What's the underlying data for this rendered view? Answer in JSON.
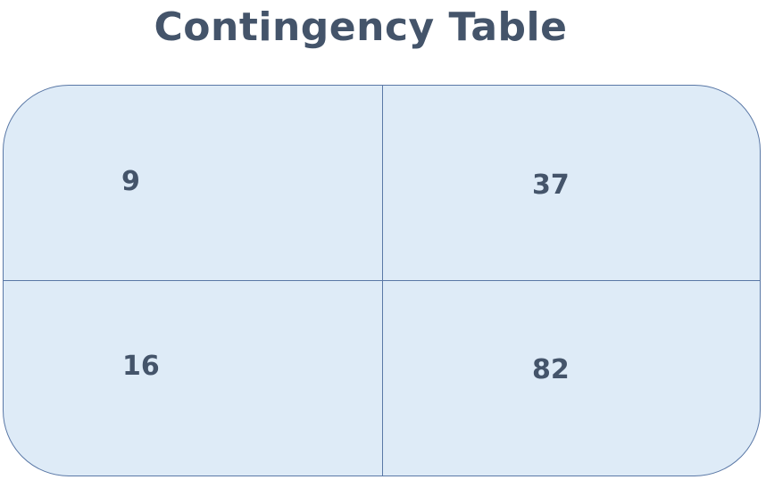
{
  "title": "Contingency Table",
  "cells": {
    "top_left": "9",
    "top_right": "37",
    "bottom_left": "16",
    "bottom_right": "82"
  },
  "colors": {
    "title_text": "#44546a",
    "cell_text": "#44546a",
    "fill": "#deebf7",
    "border": "#5a78a6"
  }
}
